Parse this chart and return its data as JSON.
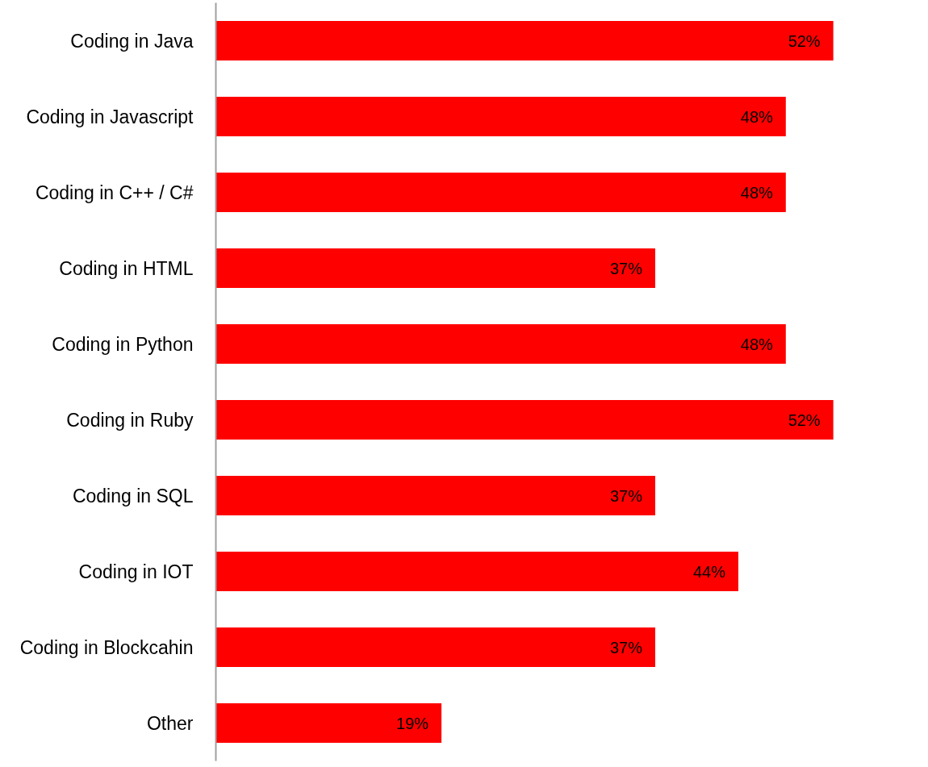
{
  "chart_data": {
    "type": "bar",
    "orientation": "horizontal",
    "categories": [
      "Coding in Java",
      "Coding in Javascript",
      "Coding in C++ / C#",
      "Coding in HTML",
      "Coding in Python",
      "Coding in Ruby",
      "Coding in SQL",
      "Coding in IOT",
      "Coding in Blockcahin",
      "Other"
    ],
    "values": [
      52,
      48,
      48,
      37,
      48,
      52,
      37,
      44,
      37,
      19
    ],
    "value_labels": [
      "52%",
      "48%",
      "48%",
      "37%",
      "48%",
      "52%",
      "37%",
      "44%",
      "37%",
      "19%"
    ],
    "color": "#ff0000",
    "tick_labels": "y",
    "grid": false
  }
}
